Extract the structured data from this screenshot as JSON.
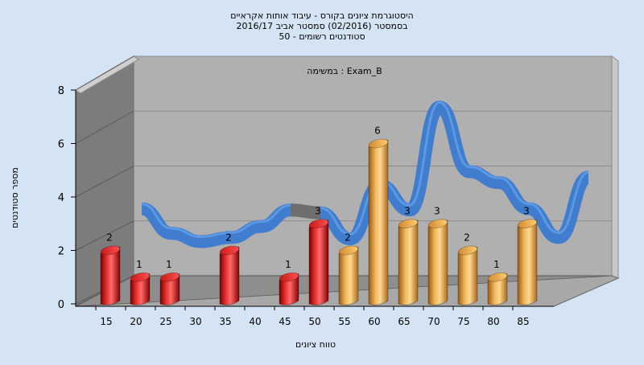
{
  "chart_data": {
    "type": "bar",
    "title_lines": [
      "היסטוגרמת ציונים בקורס - עיבוד אותות אקראיים",
      "בסמסטר  (02/2016)  סמסטר אביב 2016/17",
      "סטודנטים רשומים - 50"
    ],
    "annotation": "במשימה : Exam_B",
    "xlabel": "טווח ציונים",
    "ylabel": "מספר סטודנטים",
    "ylim": [
      0,
      8
    ],
    "yticks": [
      "0",
      "2",
      "4",
      "6",
      "8"
    ],
    "xticks": [
      "15",
      "20",
      "25",
      "30",
      "35",
      "40",
      "45",
      "50",
      "55",
      "60",
      "65",
      "70",
      "75",
      "80",
      "85"
    ],
    "bars": [
      {
        "x": 15,
        "value": 2,
        "color": "red"
      },
      {
        "x": 20,
        "value": 1,
        "color": "red"
      },
      {
        "x": 25,
        "value": 1,
        "color": "red"
      },
      {
        "x": 35,
        "value": 2,
        "color": "red"
      },
      {
        "x": 45,
        "value": 1,
        "color": "red"
      },
      {
        "x": 50,
        "value": 3,
        "color": "red"
      },
      {
        "x": 55,
        "value": 2,
        "color": "orange"
      },
      {
        "x": 60,
        "value": 6,
        "color": "orange"
      },
      {
        "x": 65,
        "value": 3,
        "color": "orange"
      },
      {
        "x": 70,
        "value": 3,
        "color": "orange"
      },
      {
        "x": 75,
        "value": 2,
        "color": "orange"
      },
      {
        "x": 80,
        "value": 1,
        "color": "orange"
      },
      {
        "x": 85,
        "value": 3,
        "color": "orange"
      }
    ],
    "curve": [
      {
        "x": 15,
        "y": 2.65
      },
      {
        "x": 20,
        "y": 1.75
      },
      {
        "x": 25,
        "y": 1.45
      },
      {
        "x": 30,
        "y": 1.6
      },
      {
        "x": 35,
        "y": 2.0
      },
      {
        "x": 40,
        "y": 2.6
      },
      {
        "x": 45,
        "y": 2.5
      },
      {
        "x": 50,
        "y": 1.55
      },
      {
        "x": 55,
        "y": 3.5
      },
      {
        "x": 60,
        "y": 2.6
      },
      {
        "x": 65,
        "y": 6.35
      },
      {
        "x": 70,
        "y": 4.0
      },
      {
        "x": 75,
        "y": 3.6
      },
      {
        "x": 80,
        "y": 2.65
      },
      {
        "x": 85,
        "y": 1.6
      },
      {
        "x": 90,
        "y": 3.8
      }
    ],
    "colors": {
      "red": "#dc2020",
      "orange": "#e4a440",
      "curve": "#3a7ad0",
      "curve_hidden": "#6e6e6e",
      "back_wall": "#b0b0b0",
      "side_wall": "#7c7c7c",
      "floor": "#8e8e8e",
      "background": "#d4e4f4"
    }
  }
}
